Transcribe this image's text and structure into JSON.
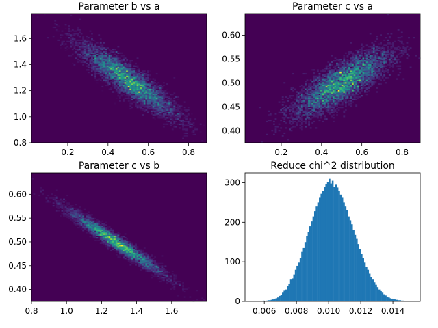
{
  "chart_data": [
    {
      "type": "heatmap",
      "title": "Parameter b vs a",
      "xlabel": "",
      "ylabel": "",
      "xlim": [
        0.02,
        0.89
      ],
      "ylim": [
        0.8,
        1.79
      ],
      "xticks": [
        0.2,
        0.4,
        0.6,
        0.8
      ],
      "yticks": [
        0.8,
        1.0,
        1.2,
        1.4,
        1.6
      ],
      "xtick_labels": [
        "0.2",
        "0.4",
        "0.6",
        "0.8"
      ],
      "ytick_labels": [
        "0.8",
        "1.0",
        "1.2",
        "1.4",
        "1.6"
      ],
      "center": [
        0.5,
        1.28
      ],
      "sigma": [
        0.12,
        0.14
      ],
      "correlation": -0.9,
      "colormap": "viridis",
      "bins": 100
    },
    {
      "type": "heatmap",
      "title": "Parameter c vs a",
      "xlabel": "",
      "ylabel": "",
      "xlim": [
        0.02,
        0.89
      ],
      "ylim": [
        0.375,
        0.645
      ],
      "xticks": [
        0.2,
        0.4,
        0.6,
        0.8
      ],
      "yticks": [
        0.4,
        0.45,
        0.5,
        0.55,
        0.6
      ],
      "xtick_labels": [
        "0.2",
        "0.4",
        "0.6",
        "0.8"
      ],
      "ytick_labels": [
        "0.40",
        "0.45",
        "0.50",
        "0.55",
        "0.60"
      ],
      "center": [
        0.5,
        0.5
      ],
      "sigma": [
        0.12,
        0.035
      ],
      "correlation": 0.8,
      "colormap": "viridis",
      "bins": 100
    },
    {
      "type": "heatmap",
      "title": "Parameter c vs b",
      "xlabel": "",
      "ylabel": "",
      "xlim": [
        0.8,
        1.8
      ],
      "ylim": [
        0.375,
        0.645
      ],
      "xticks": [
        0.8,
        1.0,
        1.2,
        1.4,
        1.6
      ],
      "yticks": [
        0.4,
        0.45,
        0.5,
        0.55,
        0.6
      ],
      "xtick_labels": [
        "0.8",
        "1.0",
        "1.2",
        "1.4",
        "1.6"
      ],
      "ytick_labels": [
        "0.40",
        "0.45",
        "0.50",
        "0.55",
        "0.60"
      ],
      "center": [
        1.28,
        0.5
      ],
      "sigma": [
        0.14,
        0.035
      ],
      "correlation": -0.97,
      "colormap": "viridis",
      "bins": 100
    },
    {
      "type": "bar",
      "title": "Reduce chi^2 distribution",
      "xlabel": "",
      "ylabel": "",
      "xlim": [
        0.0048,
        0.0157
      ],
      "ylim": [
        0,
        325
      ],
      "xticks": [
        0.006,
        0.008,
        0.01,
        0.012,
        0.014
      ],
      "yticks": [
        0,
        100,
        200,
        300
      ],
      "xtick_labels": [
        "0.006",
        "0.008",
        "0.010",
        "0.012",
        "0.014"
      ],
      "ytick_labels": [
        "0",
        "100",
        "200",
        "300"
      ],
      "bin_start": 0.0054,
      "bin_width": 0.0001,
      "values": [
        1,
        0,
        0,
        1,
        1,
        2,
        1,
        2,
        3,
        3,
        4,
        5,
        7,
        8,
        10,
        14,
        17,
        22,
        27,
        30,
        38,
        45,
        55,
        58,
        68,
        80,
        90,
        98,
        110,
        125,
        135,
        150,
        165,
        175,
        190,
        202,
        215,
        228,
        240,
        250,
        262,
        272,
        280,
        290,
        296,
        302,
        310,
        298,
        305,
        290,
        295,
        288,
        280,
        270,
        262,
        250,
        240,
        230,
        215,
        205,
        195,
        180,
        168,
        158,
        145,
        132,
        120,
        110,
        98,
        88,
        80,
        70,
        62,
        55,
        48,
        42,
        36,
        30,
        26,
        22,
        18,
        15,
        12,
        10,
        8,
        7,
        6,
        5,
        4,
        3,
        3,
        2,
        2,
        1,
        1,
        1,
        0,
        1,
        1
      ],
      "color": "#1f77b4"
    }
  ]
}
